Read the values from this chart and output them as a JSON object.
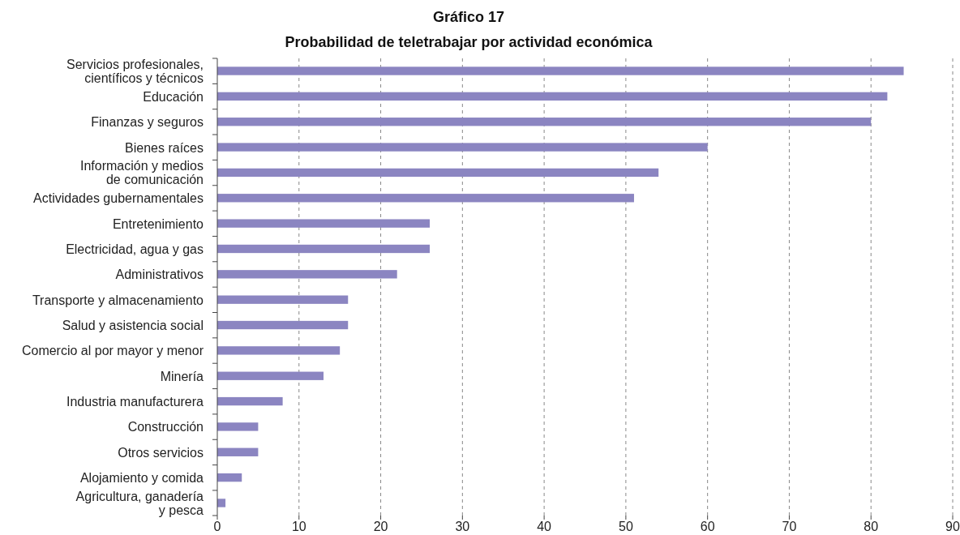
{
  "chart_data": {
    "type": "bar",
    "orientation": "horizontal",
    "title": "Gráfico 17",
    "subtitle": "Probabilidad de teletrabajar por actividad económica",
    "categories": [
      "Servicios profesionales,\ncientíficos y técnicos",
      "Educación",
      "Finanzas y seguros",
      "Bienes raíces",
      "Información y medios\nde comunicación",
      "Actividades gubernamentales",
      "Entretenimiento",
      "Electricidad, agua y gas",
      "Administrativos",
      "Transporte y almacenamiento",
      "Salud y asistencia social",
      "Comercio al por mayor y menor",
      "Minería",
      "Industria manufacturera",
      "Construcción",
      "Otros servicios",
      "Alojamiento y comida",
      "Agricultura, ganadería\ny pesca"
    ],
    "values": [
      84,
      82,
      80,
      60,
      54,
      51,
      26,
      26,
      22,
      16,
      16,
      15,
      13,
      8,
      5,
      5,
      3,
      1
    ],
    "color": "#8b85c1",
    "xlim": [
      0,
      90
    ],
    "xticks": [
      0,
      10,
      20,
      30,
      40,
      50,
      60,
      70,
      80,
      90
    ],
    "grid": "x"
  }
}
